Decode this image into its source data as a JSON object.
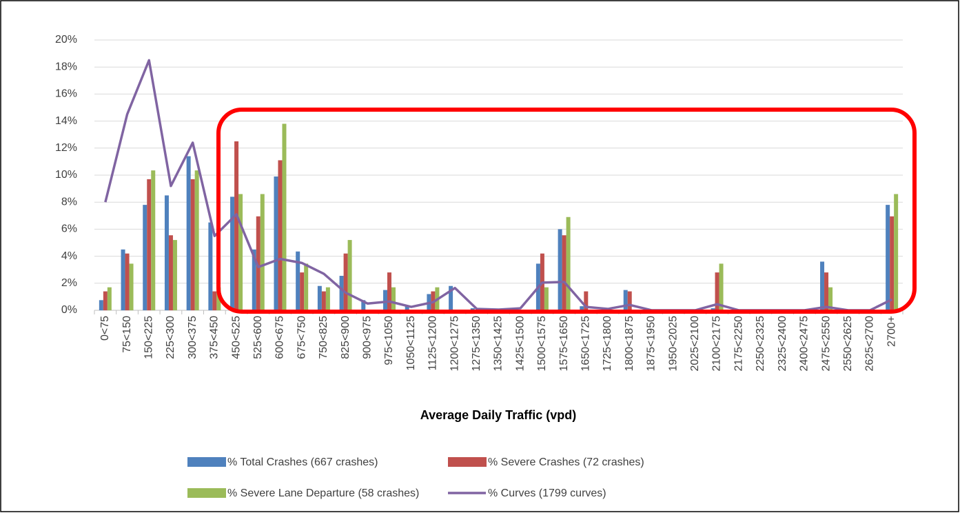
{
  "chart_data": {
    "type": "bar",
    "x_label": "Average Daily Traffic (vpd)",
    "categories": [
      "0<75",
      "75<150",
      "150<225",
      "225<300",
      "300<375",
      "375<450",
      "450<525",
      "525<600",
      "600<675",
      "675<750",
      "750<825",
      "825<900",
      "900<975",
      "975<1050",
      "1050<1125",
      "1125<1200",
      "1200<1275",
      "1275<1350",
      "1350<1425",
      "1425<1500",
      "1500<1575",
      "1575<1650",
      "1650<1725",
      "1725<1800",
      "1800<1875",
      "1875<1950",
      "1950<2025",
      "2025<2100",
      "2100<2175",
      "2175<2250",
      "2250<2325",
      "2325<2400",
      "2400<2475",
      "2475<2550",
      "2550<2625",
      "2625<2700",
      "2700+"
    ],
    "series": [
      {
        "name": "% Total Crashes (667 crashes)",
        "type": "bar",
        "color": "#4f81bd",
        "values": [
          0.75,
          4.5,
          7.8,
          8.5,
          11.4,
          6.5,
          8.4,
          4.5,
          9.9,
          4.35,
          1.8,
          2.55,
          0.75,
          1.5,
          0.3,
          1.2,
          1.8,
          0.15,
          0,
          0,
          3.45,
          6.0,
          0.3,
          0,
          1.5,
          0,
          0,
          0,
          0.15,
          0,
          0,
          0,
          0,
          3.6,
          0,
          0,
          7.8
        ]
      },
      {
        "name": "% Severe Crashes (72 crashes)",
        "type": "bar",
        "color": "#c0504d",
        "values": [
          1.4,
          4.2,
          9.7,
          5.55,
          9.7,
          1.4,
          12.5,
          6.95,
          11.1,
          2.8,
          1.4,
          4.2,
          0,
          2.8,
          0,
          1.4,
          0,
          0,
          0,
          0,
          4.2,
          5.55,
          1.4,
          0,
          1.4,
          0,
          0,
          0,
          2.8,
          0,
          0,
          0,
          0,
          2.8,
          0,
          0,
          6.95
        ]
      },
      {
        "name": "% Severe Lane Departure (58 crashes)",
        "type": "bar",
        "color": "#9bbb59",
        "values": [
          1.7,
          3.45,
          10.35,
          5.2,
          10.35,
          1.7,
          8.6,
          8.6,
          13.8,
          3.45,
          1.7,
          5.2,
          0,
          1.7,
          0,
          1.7,
          0,
          0,
          0,
          0,
          1.7,
          6.9,
          0,
          0,
          0,
          0,
          0,
          0,
          3.45,
          0,
          0,
          0,
          0,
          1.7,
          0,
          0,
          8.6
        ]
      },
      {
        "name": "% Curves (1799 curves)",
        "type": "line",
        "color": "#8064a2",
        "values": [
          8.0,
          14.5,
          18.5,
          9.2,
          12.4,
          5.5,
          7.1,
          3.2,
          3.8,
          3.5,
          2.7,
          1.3,
          0.5,
          0.65,
          0.25,
          0.6,
          1.65,
          0.1,
          0.05,
          0.15,
          2.05,
          2.1,
          0.25,
          0.1,
          0.4,
          0,
          0,
          0,
          0.45,
          0,
          0,
          0,
          0,
          0.25,
          0,
          0,
          0.8
        ]
      }
    ],
    "ylim": [
      0,
      20
    ],
    "yticks": [
      {
        "value": 0,
        "label": "0%"
      },
      {
        "value": 2,
        "label": "2%"
      },
      {
        "value": 4,
        "label": "4%"
      },
      {
        "value": 6,
        "label": "6%"
      },
      {
        "value": 8,
        "label": "8%"
      },
      {
        "value": 10,
        "label": "10%"
      },
      {
        "value": 12,
        "label": "12%"
      },
      {
        "value": 14,
        "label": "14%"
      },
      {
        "value": 16,
        "label": "16%"
      },
      {
        "value": 18,
        "label": "18%"
      },
      {
        "value": 20,
        "label": "20%"
      }
    ],
    "grid": true,
    "legend": "bottom"
  }
}
